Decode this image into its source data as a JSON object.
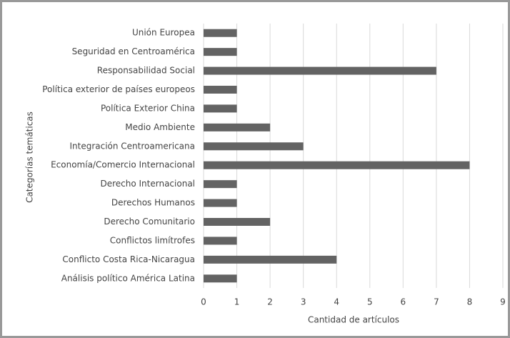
{
  "chart_data": {
    "type": "bar",
    "orientation": "horizontal",
    "categories": [
      "Unión Europea",
      "Seguridad en Centroamérica",
      "Responsabilidad Social",
      "Política exterior de países europeos",
      "Política Exterior China",
      "Medio Ambiente",
      "Integración Centroamericana",
      "Economía/Comercio Internacional",
      "Derecho Internacional",
      "Derechos Humanos",
      "Derecho Comunitario",
      "Conflictos limítrofes",
      "Conflicto Costa Rica-Nicaragua",
      "Análisis político América Latina"
    ],
    "values": [
      1,
      1,
      7,
      1,
      1,
      2,
      3,
      8,
      1,
      1,
      2,
      1,
      4,
      1
    ],
    "color": "#636363",
    "x_label": "Cantidad de artículos",
    "y_label": "Categorías temáticas",
    "xlim": [
      0,
      9
    ],
    "xticks": [
      0,
      1,
      2,
      3,
      4,
      5,
      6,
      7,
      8,
      9
    ],
    "grid": true
  }
}
